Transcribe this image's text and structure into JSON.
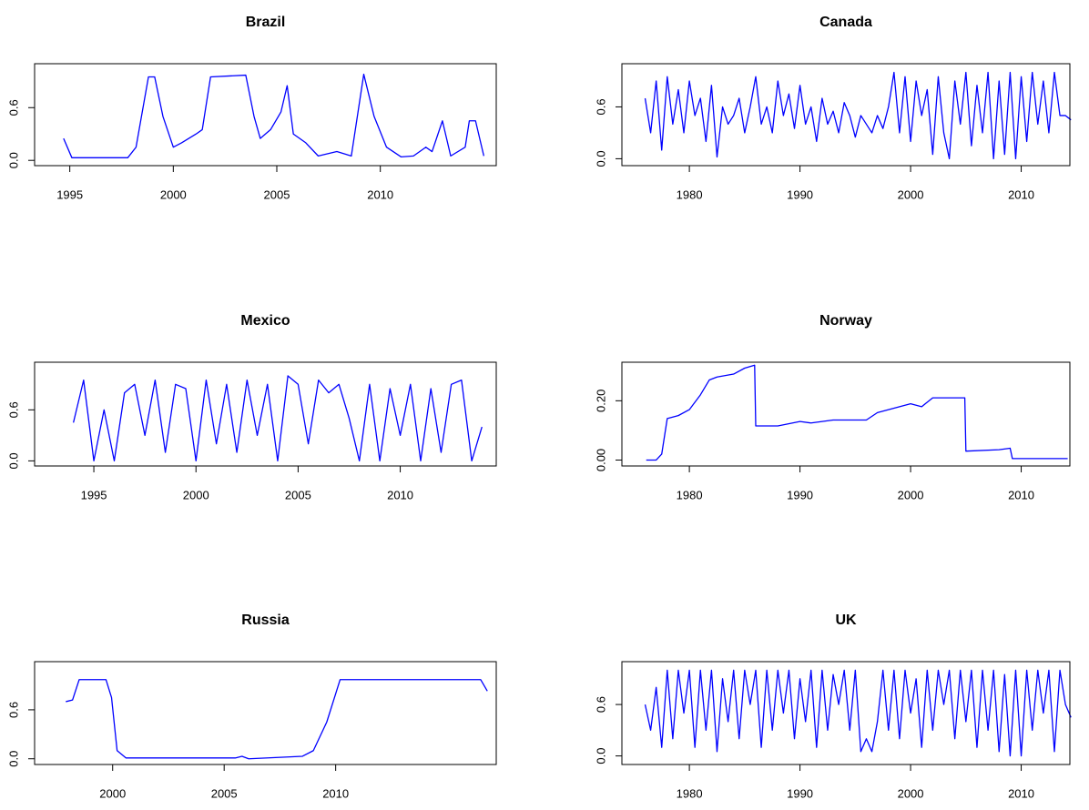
{
  "chart_data": [
    {
      "type": "line",
      "title": "Brazil",
      "color": "#0000ff",
      "x": [
        1994.7,
        1995.1,
        1997.8,
        1998.2,
        1998.8,
        1999.1,
        1999.5,
        2000.0,
        2000.4,
        2001.1,
        2001.4,
        2001.8,
        2003.5,
        2003.9,
        2004.2,
        2004.7,
        2005.2,
        2005.5,
        2005.8,
        2006.4,
        2007.0,
        2007.9,
        2008.6,
        2009.2,
        2009.7,
        2010.3,
        2011.0,
        2011.6,
        2012.2,
        2012.5,
        2013.0,
        2013.4,
        2014.1,
        2014.3,
        2014.6,
        2015.0
      ],
      "values": [
        0.25,
        0.03,
        0.03,
        0.15,
        0.95,
        0.95,
        0.5,
        0.15,
        0.2,
        0.3,
        0.35,
        0.95,
        0.97,
        0.5,
        0.25,
        0.35,
        0.55,
        0.85,
        0.3,
        0.2,
        0.05,
        0.1,
        0.05,
        0.98,
        0.5,
        0.15,
        0.04,
        0.05,
        0.15,
        0.1,
        0.45,
        0.05,
        0.15,
        0.45,
        0.45,
        0.05
      ],
      "xlim": [
        1993.3,
        2015.6
      ],
      "ylim": [
        -0.06,
        1.1
      ],
      "xticks": [
        1995,
        2000,
        2005,
        2010
      ],
      "yticks": [
        {
          "value": 0,
          "label": "0.0"
        },
        0.6
      ]
    },
    {
      "type": "line",
      "title": "Canada",
      "color": "#0000ff",
      "x": [
        1976.0,
        1976.5,
        1977.0,
        1977.5,
        1978.0,
        1978.5,
        1979.0,
        1979.5,
        1980.0,
        1980.5,
        1981.0,
        1981.5,
        1982.0,
        1982.5,
        1983.0,
        1983.5,
        1984.0,
        1984.5,
        1985.0,
        1985.5,
        1986.0,
        1986.5,
        1987.0,
        1987.5,
        1988.0,
        1988.5,
        1989.0,
        1989.5,
        1990.0,
        1990.5,
        1991.0,
        1991.5,
        1992.0,
        1992.5,
        1993.0,
        1993.5,
        1994.0,
        1994.5,
        1995.0,
        1995.5,
        1996.0,
        1996.5,
        1997.0,
        1997.5,
        1998.0,
        1998.5,
        1999.0,
        1999.5,
        2000.0,
        2000.5,
        2001.0,
        2001.5,
        2002.0,
        2002.5,
        2003.0,
        2003.5,
        2004.0,
        2004.5,
        2005.0,
        2005.5,
        2006.0,
        2006.5,
        2007.0,
        2007.5,
        2008.0,
        2008.5,
        2009.0,
        2009.5,
        2010.0,
        2010.5,
        2011.0,
        2011.5,
        2012.0,
        2012.5,
        2013.0,
        2013.5,
        2014.0,
        2014.5
      ],
      "values": [
        0.7,
        0.3,
        0.9,
        0.1,
        0.95,
        0.4,
        0.8,
        0.3,
        0.9,
        0.5,
        0.7,
        0.2,
        0.85,
        0.02,
        0.6,
        0.4,
        0.5,
        0.7,
        0.3,
        0.6,
        0.95,
        0.4,
        0.6,
        0.3,
        0.9,
        0.5,
        0.75,
        0.35,
        0.85,
        0.4,
        0.6,
        0.2,
        0.7,
        0.4,
        0.55,
        0.3,
        0.65,
        0.5,
        0.25,
        0.5,
        0.4,
        0.3,
        0.5,
        0.35,
        0.6,
        1.0,
        0.3,
        0.95,
        0.2,
        0.9,
        0.5,
        0.8,
        0.05,
        0.95,
        0.3,
        0.0,
        0.9,
        0.4,
        1.0,
        0.15,
        0.85,
        0.3,
        1.0,
        0.0,
        0.9,
        0.05,
        1.0,
        0.0,
        0.95,
        0.2,
        1.0,
        0.4,
        0.9,
        0.3,
        1.0,
        0.5,
        0.5,
        0.45
      ],
      "xlim": [
        1973.9,
        2014.4
      ],
      "ylim": [
        -0.08,
        1.1
      ],
      "xticks": [
        1980,
        1990,
        2000,
        2010
      ],
      "yticks": [
        {
          "value": 0,
          "label": "0.0"
        },
        0.6
      ]
    },
    {
      "type": "line",
      "title": "Mexico",
      "color": "#0000ff",
      "x": [
        1994.0,
        1994.5,
        1995.0,
        1995.5,
        1996.0,
        1996.5,
        1997.0,
        1997.5,
        1998.0,
        1998.5,
        1999.0,
        1999.5,
        2000.0,
        2000.5,
        2001.0,
        2001.5,
        2002.0,
        2002.5,
        2003.0,
        2003.5,
        2004.0,
        2004.5,
        2005.0,
        2005.5,
        2006.0,
        2006.5,
        2007.0,
        2007.5,
        2008.0,
        2008.5,
        2009.0,
        2009.5,
        2010.0,
        2010.5,
        2011.0,
        2011.5,
        2012.0,
        2012.5,
        2013.0,
        2013.5,
        2014.0
      ],
      "values": [
        0.45,
        0.95,
        0.0,
        0.6,
        0.0,
        0.8,
        0.9,
        0.3,
        0.95,
        0.1,
        0.9,
        0.85,
        0.0,
        0.95,
        0.2,
        0.9,
        0.1,
        0.95,
        0.3,
        0.9,
        0.0,
        1.0,
        0.9,
        0.2,
        0.95,
        0.8,
        0.9,
        0.5,
        0.0,
        0.9,
        0.0,
        0.85,
        0.3,
        0.9,
        0.0,
        0.85,
        0.1,
        0.9,
        0.95,
        0.0,
        0.4
      ],
      "xlim": [
        1992.1,
        2014.7
      ],
      "ylim": [
        -0.06,
        1.16
      ],
      "xticks": [
        1995,
        2000,
        2005,
        2010
      ],
      "yticks": [
        {
          "value": 0,
          "label": "0.0"
        },
        0.6
      ]
    },
    {
      "type": "line",
      "title": "Norway",
      "color": "#0000ff",
      "x": [
        1976.1,
        1977.0,
        1977.5,
        1978.0,
        1979.0,
        1980.0,
        1981.0,
        1981.8,
        1982.5,
        1984.0,
        1985.0,
        1985.9,
        1986.0,
        1988.0,
        1990.0,
        1991.0,
        1993.0,
        1996.0,
        1997.0,
        1999.0,
        2000.0,
        2001.0,
        2002.0,
        2004.9,
        2005.0,
        2008.0,
        2009.0,
        2009.2,
        2014.2
      ],
      "values": [
        0.0,
        0.0,
        0.02,
        0.14,
        0.15,
        0.17,
        0.22,
        0.27,
        0.28,
        0.29,
        0.31,
        0.32,
        0.115,
        0.115,
        0.13,
        0.125,
        0.135,
        0.135,
        0.16,
        0.18,
        0.19,
        0.18,
        0.21,
        0.21,
        0.03,
        0.035,
        0.04,
        0.005,
        0.005
      ],
      "xlim": [
        1973.9,
        2014.4
      ],
      "ylim": [
        -0.02,
        0.33
      ],
      "xticks": [
        1980,
        1990,
        2000,
        2010
      ],
      "yticks": [
        {
          "value": 0,
          "label": "0.00"
        },
        {
          "value": 0.2,
          "label": "0.20"
        }
      ]
    },
    {
      "type": "line",
      "title": "Russia",
      "color": "#0000ff",
      "x": [
        1997.9,
        1998.2,
        1998.5,
        1999.7,
        1999.95,
        2000.2,
        2000.6,
        2005.5,
        2005.8,
        2006.1,
        2008.5,
        2009.0,
        2009.6,
        2010.2,
        2016.5,
        2016.8
      ],
      "values": [
        0.7,
        0.72,
        0.97,
        0.97,
        0.75,
        0.1,
        0.01,
        0.01,
        0.03,
        0.0,
        0.03,
        0.1,
        0.45,
        0.97,
        0.97,
        0.83
      ],
      "xlim": [
        1996.5,
        2017.2
      ],
      "ylim": [
        -0.07,
        1.19
      ],
      "xticks": [
        2000,
        2005,
        2010
      ],
      "yticks": [
        {
          "value": 0,
          "label": "0.0"
        },
        0.6
      ]
    },
    {
      "type": "line",
      "title": "UK",
      "color": "#0000ff",
      "x": [
        1976.0,
        1976.5,
        1977.0,
        1977.5,
        1978.0,
        1978.5,
        1979.0,
        1979.5,
        1980.0,
        1980.5,
        1981.0,
        1981.5,
        1982.0,
        1982.5,
        1983.0,
        1983.5,
        1984.0,
        1984.5,
        1985.0,
        1985.5,
        1986.0,
        1986.5,
        1987.0,
        1987.5,
        1988.0,
        1988.5,
        1989.0,
        1989.5,
        1990.0,
        1990.5,
        1991.0,
        1991.5,
        1992.0,
        1992.5,
        1993.0,
        1993.5,
        1994.0,
        1994.5,
        1995.0,
        1995.5,
        1996.0,
        1996.5,
        1997.0,
        1997.5,
        1998.0,
        1998.5,
        1999.0,
        1999.5,
        2000.0,
        2000.5,
        2001.0,
        2001.5,
        2002.0,
        2002.5,
        2003.0,
        2003.5,
        2004.0,
        2004.5,
        2005.0,
        2005.5,
        2006.0,
        2006.5,
        2007.0,
        2007.5,
        2008.0,
        2008.5,
        2009.0,
        2009.5,
        2010.0,
        2010.5,
        2011.0,
        2011.5,
        2012.0,
        2012.5,
        2013.0,
        2013.5,
        2014.0,
        2014.5
      ],
      "values": [
        0.6,
        0.3,
        0.8,
        0.1,
        1.0,
        0.2,
        1.0,
        0.5,
        1.0,
        0.1,
        1.0,
        0.3,
        1.0,
        0.05,
        0.9,
        0.4,
        1.0,
        0.2,
        1.0,
        0.6,
        1.0,
        0.1,
        1.0,
        0.3,
        1.0,
        0.5,
        1.0,
        0.2,
        0.9,
        0.4,
        1.0,
        0.1,
        1.0,
        0.3,
        0.95,
        0.6,
        1.0,
        0.3,
        1.0,
        0.05,
        0.2,
        0.05,
        0.4,
        1.0,
        0.3,
        1.0,
        0.2,
        1.0,
        0.5,
        0.9,
        0.1,
        1.0,
        0.3,
        1.0,
        0.6,
        1.0,
        0.2,
        1.0,
        0.4,
        1.0,
        0.1,
        1.0,
        0.3,
        1.0,
        0.05,
        0.95,
        0.0,
        1.0,
        0.0,
        1.0,
        0.3,
        1.0,
        0.5,
        1.0,
        0.05,
        1.0,
        0.6,
        0.45
      ],
      "xlim": [
        1973.9,
        2014.4
      ],
      "ylim": [
        -0.1,
        1.1
      ],
      "xticks": [
        1980,
        1990,
        2000,
        2010
      ],
      "yticks": [
        {
          "value": 0,
          "label": "0.0"
        },
        0.6
      ]
    }
  ]
}
